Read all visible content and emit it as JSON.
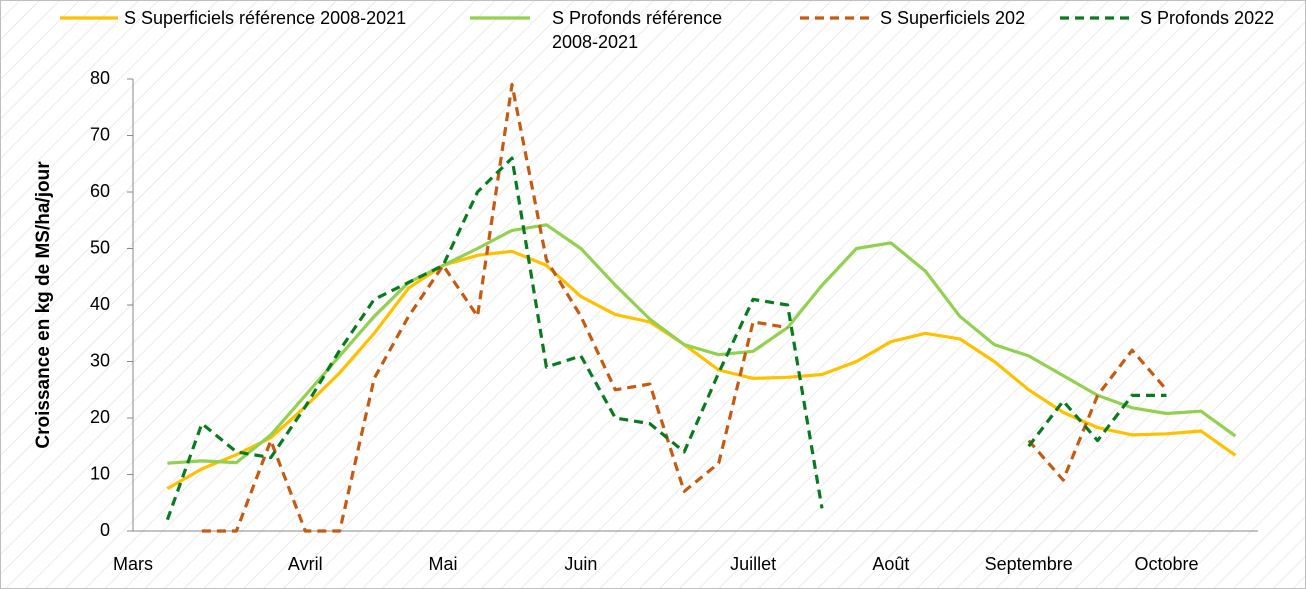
{
  "chart_data": {
    "type": "line",
    "y_label": "Croissance en kg de MS/ha/jour",
    "categories": [
      "Mars",
      null,
      null,
      null,
      null,
      "Avril",
      null,
      null,
      null,
      "Mai",
      null,
      null,
      null,
      "Juin",
      null,
      null,
      null,
      null,
      "Juillet",
      null,
      null,
      null,
      "Août",
      null,
      null,
      null,
      "Septembre",
      null,
      null,
      null,
      "Octobre",
      null,
      null
    ],
    "series": [
      {
        "name": "S Superficiels référence 2008-2021",
        "color": "#ffc000",
        "dash": false,
        "values": [
          null,
          7.5,
          11,
          13.5,
          16.5,
          22,
          28,
          35,
          43,
          47,
          48.8,
          49.5,
          47,
          41.5,
          38.3,
          37,
          33,
          28.5,
          27,
          27.2,
          27.7,
          30,
          33.5,
          35,
          34,
          30,
          25,
          21,
          18.3,
          17,
          17.2,
          17.7,
          13.4
        ]
      },
      {
        "name": "S Profonds référence 2008-2021",
        "color": "#92d050",
        "dash": false,
        "values": [
          null,
          12,
          12.4,
          12.1,
          17,
          24,
          31,
          38,
          44,
          47,
          50,
          53.2,
          54.2,
          50,
          43.5,
          37.5,
          33,
          31.2,
          31.8,
          36,
          43.5,
          50,
          51,
          46,
          38,
          33,
          31,
          27.5,
          24,
          21.8,
          20.8,
          21.2,
          16.8
        ]
      },
      {
        "name": "S Superficiels 202",
        "color": "#c55a11",
        "dash": true,
        "values": [
          null,
          null,
          0,
          0,
          16,
          0,
          0,
          27,
          38,
          47,
          38,
          79,
          48,
          38,
          25,
          26,
          7,
          12,
          37,
          36,
          null,
          null,
          null,
          null,
          null,
          null,
          16,
          9,
          24,
          32,
          25,
          null,
          null
        ]
      },
      {
        "name": "S Profonds 2022",
        "color": "#0a7a20",
        "dash": true,
        "values": [
          null,
          2,
          19,
          14,
          13,
          22,
          32,
          41,
          44,
          47,
          60,
          66,
          29,
          31,
          20,
          19,
          14,
          28,
          41,
          40,
          4,
          null,
          null,
          null,
          null,
          null,
          15,
          23,
          16,
          24,
          24,
          null,
          null
        ]
      }
    ],
    "ylim": [
      0,
      80
    ],
    "yticks": [
      0,
      10,
      20,
      30,
      40,
      50,
      60,
      70,
      80
    ],
    "grid": false
  }
}
